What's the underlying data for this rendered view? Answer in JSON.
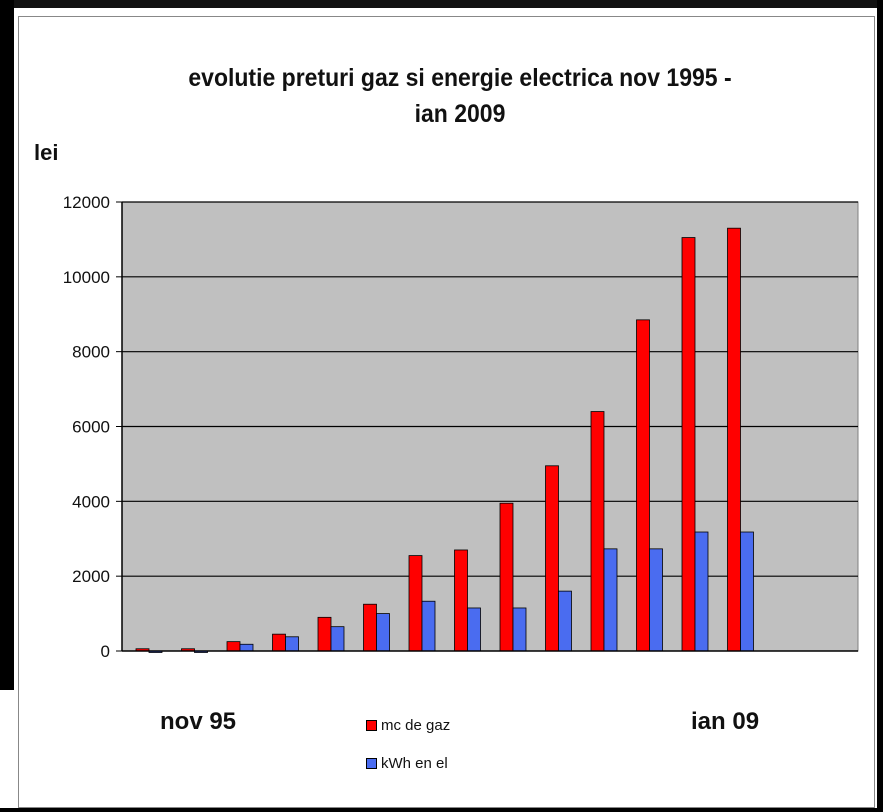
{
  "chart_data": {
    "type": "bar",
    "title_lines": [
      "evolutie preturi gaz si energie electrica nov 1995 -",
      "ian 2009"
    ],
    "ylabel": "lei",
    "ylim": [
      0,
      12000
    ],
    "yticks": [
      "0",
      "2000",
      "4000",
      "6000",
      "8000",
      "10000",
      "12000"
    ],
    "grid": true,
    "x_start_label": "nov 95",
    "x_end_label": "ian 09",
    "legend_placement": "bottom-center",
    "categories": [
      "",
      "",
      "",
      "",
      "",
      "",
      "",
      "",
      "",
      "",
      "",
      "",
      "",
      ""
    ],
    "series": [
      {
        "name": "mc de gaz",
        "color": "#ff0000",
        "values": [
          60,
          60,
          250,
          450,
          900,
          1250,
          2550,
          2700,
          3950,
          4950,
          6400,
          8850,
          11050,
          11300
        ]
      },
      {
        "name": "kWh en el",
        "color": "#4a6cf0",
        "values": [
          0,
          0,
          180,
          380,
          650,
          1000,
          1330,
          1150,
          1150,
          1600,
          2730,
          2730,
          3180,
          3180
        ]
      }
    ]
  }
}
